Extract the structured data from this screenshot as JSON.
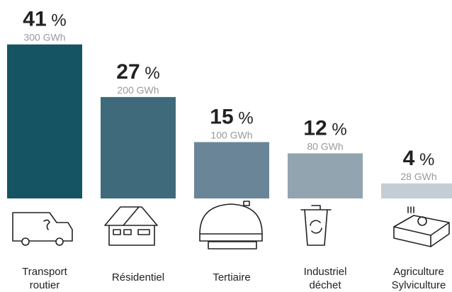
{
  "chart_data": {
    "type": "bar",
    "categories": [
      [
        "Transport",
        "routier"
      ],
      [
        "Résidentiel"
      ],
      [
        "Tertiaire"
      ],
      [
        "Industriel",
        "déchet"
      ],
      [
        "Agriculture",
        "Sylviculture"
      ]
    ],
    "values": [
      41,
      27,
      15,
      12,
      4
    ],
    "value_labels": [
      "41 %",
      "27 %",
      "15 %",
      "12 %",
      "4 %"
    ],
    "gwh_values": [
      300,
      200,
      100,
      80,
      28
    ],
    "gwh_labels": [
      "300 GWh",
      "200 GWh",
      "100 GWh",
      "80 GWh",
      "28 GWh"
    ],
    "colors": [
      "#155462",
      "#3f6a7c",
      "#6a8597",
      "#93a4b1",
      "#c3cdd5"
    ]
  }
}
